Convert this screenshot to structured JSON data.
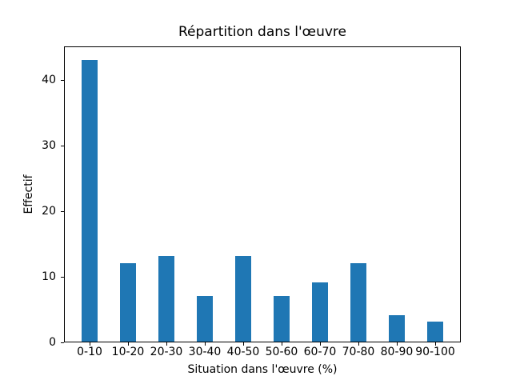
{
  "chart_data": {
    "type": "bar",
    "title": "Répartition dans l'œuvre",
    "xlabel": "Situation dans l'œuvre (%)",
    "ylabel": "Effectif",
    "categories": [
      "0-10",
      "10-20",
      "20-30",
      "30-40",
      "40-50",
      "50-60",
      "60-70",
      "70-80",
      "80-90",
      "90-100"
    ],
    "values": [
      43,
      12,
      13,
      7,
      13,
      7,
      9,
      12,
      4,
      3
    ],
    "yticks": [
      0,
      10,
      20,
      30,
      40
    ],
    "ylim": [
      0,
      45.15
    ],
    "xlim": [
      -0.667,
      9.667
    ],
    "bar_width": 0.4,
    "bar_color": "#1f77b4",
    "axis_color": "#000000",
    "background_color": "#ffffff",
    "grid": false,
    "legend_position": "none"
  }
}
